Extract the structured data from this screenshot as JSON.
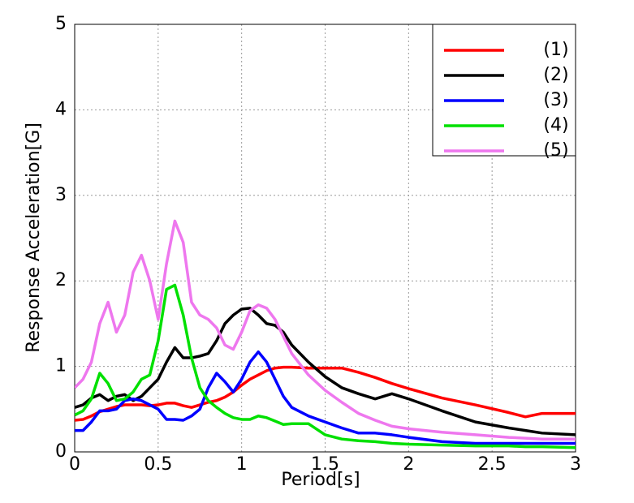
{
  "chart_data": {
    "type": "line",
    "x_label": "Period[s]",
    "y_label": "Response Acceleration[G]",
    "x": [
      0,
      0.05,
      0.1,
      0.15,
      0.2,
      0.25,
      0.3,
      0.35,
      0.4,
      0.45,
      0.5,
      0.55,
      0.6,
      0.65,
      0.7,
      0.75,
      0.8,
      0.85,
      0.9,
      0.95,
      1.0,
      1.05,
      1.1,
      1.15,
      1.2,
      1.25,
      1.3,
      1.4,
      1.5,
      1.6,
      1.7,
      1.8,
      1.9,
      2.0,
      2.2,
      2.4,
      2.6,
      2.7,
      2.8,
      3.0
    ],
    "series": [
      {
        "name": "(1)",
        "color": "#ff0000",
        "values": [
          0.37,
          0.38,
          0.42,
          0.47,
          0.5,
          0.53,
          0.55,
          0.55,
          0.55,
          0.54,
          0.55,
          0.57,
          0.57,
          0.54,
          0.52,
          0.55,
          0.58,
          0.6,
          0.64,
          0.7,
          0.78,
          0.85,
          0.9,
          0.95,
          0.98,
          0.99,
          0.99,
          0.98,
          0.98,
          0.98,
          0.93,
          0.87,
          0.8,
          0.74,
          0.63,
          0.55,
          0.46,
          0.41,
          0.45,
          0.45
        ]
      },
      {
        "name": "(2)",
        "color": "#000000",
        "values": [
          0.52,
          0.55,
          0.63,
          0.67,
          0.6,
          0.65,
          0.67,
          0.6,
          0.65,
          0.75,
          0.85,
          1.05,
          1.22,
          1.1,
          1.1,
          1.12,
          1.15,
          1.3,
          1.5,
          1.6,
          1.67,
          1.68,
          1.6,
          1.5,
          1.48,
          1.4,
          1.25,
          1.05,
          0.88,
          0.75,
          0.68,
          0.62,
          0.68,
          0.62,
          0.48,
          0.35,
          0.28,
          0.25,
          0.22,
          0.2
        ]
      },
      {
        "name": "(3)",
        "color": "#0000ff",
        "values": [
          0.25,
          0.25,
          0.35,
          0.48,
          0.48,
          0.5,
          0.6,
          0.62,
          0.6,
          0.55,
          0.5,
          0.38,
          0.38,
          0.37,
          0.42,
          0.5,
          0.75,
          0.92,
          0.82,
          0.7,
          0.85,
          1.05,
          1.17,
          1.05,
          0.85,
          0.65,
          0.52,
          0.42,
          0.35,
          0.28,
          0.22,
          0.22,
          0.2,
          0.17,
          0.12,
          0.1,
          0.1,
          0.1,
          0.1,
          0.1
        ]
      },
      {
        "name": "(4)",
        "color": "#00e000",
        "values": [
          0.43,
          0.48,
          0.62,
          0.92,
          0.8,
          0.6,
          0.62,
          0.7,
          0.85,
          0.9,
          1.3,
          1.9,
          1.95,
          1.6,
          1.1,
          0.75,
          0.6,
          0.52,
          0.45,
          0.4,
          0.38,
          0.38,
          0.42,
          0.4,
          0.36,
          0.32,
          0.33,
          0.33,
          0.2,
          0.15,
          0.13,
          0.12,
          0.1,
          0.09,
          0.08,
          0.07,
          0.07,
          0.06,
          0.06,
          0.05
        ]
      },
      {
        "name": "(5)",
        "color": "#ee77ee",
        "values": [
          0.75,
          0.85,
          1.05,
          1.5,
          1.75,
          1.4,
          1.6,
          2.1,
          2.3,
          2.0,
          1.55,
          2.2,
          2.7,
          2.45,
          1.75,
          1.6,
          1.55,
          1.45,
          1.25,
          1.2,
          1.4,
          1.65,
          1.72,
          1.68,
          1.55,
          1.35,
          1.15,
          0.9,
          0.72,
          0.58,
          0.45,
          0.37,
          0.3,
          0.27,
          0.23,
          0.2,
          0.17,
          0.16,
          0.15,
          0.15
        ]
      }
    ],
    "xlim": [
      0,
      3
    ],
    "xticks": [
      0,
      0.5,
      1,
      1.5,
      2,
      2.5,
      3
    ],
    "ylim": [
      0,
      5
    ],
    "yticks": [
      0,
      1,
      2,
      3,
      4,
      5
    ],
    "grid": true,
    "legend": "upper right"
  }
}
